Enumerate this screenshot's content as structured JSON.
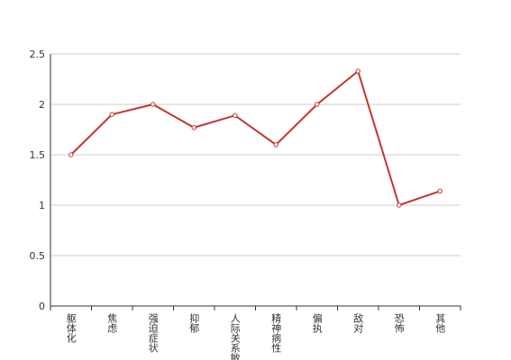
{
  "chart_data": {
    "type": "line",
    "categories": [
      "躯体化",
      "焦虑",
      "强迫症状",
      "抑郁",
      "人际关系敏感",
      "精神病性",
      "偏执",
      "敌对",
      "恐怖",
      "其他"
    ],
    "values": [
      1.5,
      1.9,
      2.0,
      1.77,
      1.89,
      1.6,
      2.0,
      2.33,
      1.0,
      1.14
    ],
    "color": "#c23531",
    "ylim": [
      0,
      2.5
    ],
    "yticks": [
      0,
      0.5,
      1,
      1.5,
      2,
      2.5
    ],
    "grid": true
  }
}
